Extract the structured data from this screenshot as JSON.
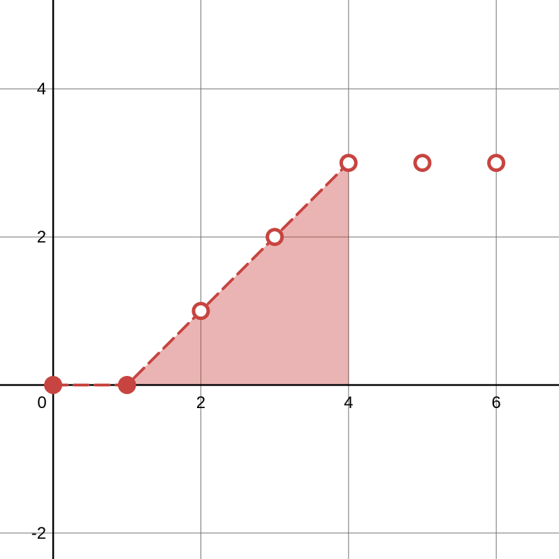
{
  "chart_data": {
    "type": "scatter",
    "title": "",
    "xlabel": "",
    "ylabel": "",
    "xlim": [
      -0.72,
      6.85
    ],
    "ylim": [
      -2.35,
      5.2
    ],
    "grid": true,
    "x_ticks": [
      {
        "value": 0,
        "label": "0"
      },
      {
        "value": 2,
        "label": "2"
      },
      {
        "value": 4,
        "label": "4"
      },
      {
        "value": 6,
        "label": "6"
      }
    ],
    "y_ticks": [
      {
        "value": -2,
        "label": "-2"
      },
      {
        "value": 2,
        "label": "2"
      },
      {
        "value": 4,
        "label": "4"
      }
    ],
    "color": "#c74440",
    "shaded_region": {
      "boundary": [
        [
          1,
          0
        ],
        [
          2,
          1
        ],
        [
          3,
          2
        ],
        [
          4,
          3
        ],
        [
          4,
          0
        ]
      ]
    },
    "dashed_path": [
      [
        0,
        0
      ],
      [
        1,
        0
      ],
      [
        2,
        1
      ],
      [
        3,
        2
      ],
      [
        4,
        3
      ]
    ],
    "points": [
      {
        "x": 0,
        "y": 0,
        "style": "filled"
      },
      {
        "x": 1,
        "y": 0,
        "style": "filled"
      },
      {
        "x": 2,
        "y": 1,
        "style": "open"
      },
      {
        "x": 3,
        "y": 2,
        "style": "open"
      },
      {
        "x": 4,
        "y": 3,
        "style": "open"
      },
      {
        "x": 5,
        "y": 3,
        "style": "open"
      },
      {
        "x": 6,
        "y": 3,
        "style": "open"
      }
    ]
  }
}
